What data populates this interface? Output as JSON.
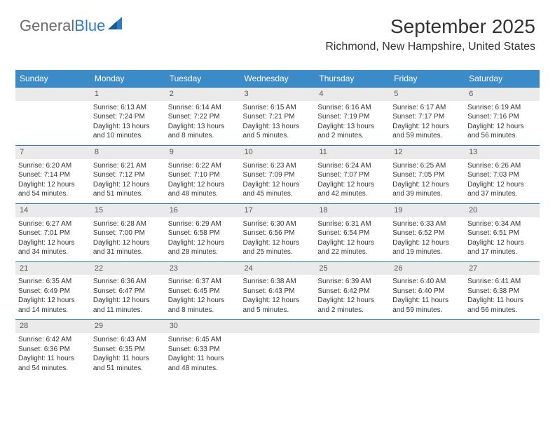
{
  "logo": {
    "part1": "General",
    "part2": "Blue"
  },
  "header": {
    "month": "September 2025",
    "location": "Richmond, New Hampshire, United States"
  },
  "colors": {
    "header_bg": "#3b8bc8",
    "row_divider": "#2d7cc1",
    "daynum_bg": "#eaeaea",
    "text": "#333333"
  },
  "weekdays": [
    "Sunday",
    "Monday",
    "Tuesday",
    "Wednesday",
    "Thursday",
    "Friday",
    "Saturday"
  ],
  "weeks": [
    {
      "nums": [
        "",
        "1",
        "2",
        "3",
        "4",
        "5",
        "6"
      ],
      "cells": [
        {
          "sunrise": "",
          "sunset": "",
          "daylight": ""
        },
        {
          "sunrise": "Sunrise: 6:13 AM",
          "sunset": "Sunset: 7:24 PM",
          "daylight": "Daylight: 13 hours and 10 minutes."
        },
        {
          "sunrise": "Sunrise: 6:14 AM",
          "sunset": "Sunset: 7:22 PM",
          "daylight": "Daylight: 13 hours and 8 minutes."
        },
        {
          "sunrise": "Sunrise: 6:15 AM",
          "sunset": "Sunset: 7:21 PM",
          "daylight": "Daylight: 13 hours and 5 minutes."
        },
        {
          "sunrise": "Sunrise: 6:16 AM",
          "sunset": "Sunset: 7:19 PM",
          "daylight": "Daylight: 13 hours and 2 minutes."
        },
        {
          "sunrise": "Sunrise: 6:17 AM",
          "sunset": "Sunset: 7:17 PM",
          "daylight": "Daylight: 12 hours and 59 minutes."
        },
        {
          "sunrise": "Sunrise: 6:19 AM",
          "sunset": "Sunset: 7:16 PM",
          "daylight": "Daylight: 12 hours and 56 minutes."
        }
      ]
    },
    {
      "nums": [
        "7",
        "8",
        "9",
        "10",
        "11",
        "12",
        "13"
      ],
      "cells": [
        {
          "sunrise": "Sunrise: 6:20 AM",
          "sunset": "Sunset: 7:14 PM",
          "daylight": "Daylight: 12 hours and 54 minutes."
        },
        {
          "sunrise": "Sunrise: 6:21 AM",
          "sunset": "Sunset: 7:12 PM",
          "daylight": "Daylight: 12 hours and 51 minutes."
        },
        {
          "sunrise": "Sunrise: 6:22 AM",
          "sunset": "Sunset: 7:10 PM",
          "daylight": "Daylight: 12 hours and 48 minutes."
        },
        {
          "sunrise": "Sunrise: 6:23 AM",
          "sunset": "Sunset: 7:09 PM",
          "daylight": "Daylight: 12 hours and 45 minutes."
        },
        {
          "sunrise": "Sunrise: 6:24 AM",
          "sunset": "Sunset: 7:07 PM",
          "daylight": "Daylight: 12 hours and 42 minutes."
        },
        {
          "sunrise": "Sunrise: 6:25 AM",
          "sunset": "Sunset: 7:05 PM",
          "daylight": "Daylight: 12 hours and 39 minutes."
        },
        {
          "sunrise": "Sunrise: 6:26 AM",
          "sunset": "Sunset: 7:03 PM",
          "daylight": "Daylight: 12 hours and 37 minutes."
        }
      ]
    },
    {
      "nums": [
        "14",
        "15",
        "16",
        "17",
        "18",
        "19",
        "20"
      ],
      "cells": [
        {
          "sunrise": "Sunrise: 6:27 AM",
          "sunset": "Sunset: 7:01 PM",
          "daylight": "Daylight: 12 hours and 34 minutes."
        },
        {
          "sunrise": "Sunrise: 6:28 AM",
          "sunset": "Sunset: 7:00 PM",
          "daylight": "Daylight: 12 hours and 31 minutes."
        },
        {
          "sunrise": "Sunrise: 6:29 AM",
          "sunset": "Sunset: 6:58 PM",
          "daylight": "Daylight: 12 hours and 28 minutes."
        },
        {
          "sunrise": "Sunrise: 6:30 AM",
          "sunset": "Sunset: 6:56 PM",
          "daylight": "Daylight: 12 hours and 25 minutes."
        },
        {
          "sunrise": "Sunrise: 6:31 AM",
          "sunset": "Sunset: 6:54 PM",
          "daylight": "Daylight: 12 hours and 22 minutes."
        },
        {
          "sunrise": "Sunrise: 6:33 AM",
          "sunset": "Sunset: 6:52 PM",
          "daylight": "Daylight: 12 hours and 19 minutes."
        },
        {
          "sunrise": "Sunrise: 6:34 AM",
          "sunset": "Sunset: 6:51 PM",
          "daylight": "Daylight: 12 hours and 17 minutes."
        }
      ]
    },
    {
      "nums": [
        "21",
        "22",
        "23",
        "24",
        "25",
        "26",
        "27"
      ],
      "cells": [
        {
          "sunrise": "Sunrise: 6:35 AM",
          "sunset": "Sunset: 6:49 PM",
          "daylight": "Daylight: 12 hours and 14 minutes."
        },
        {
          "sunrise": "Sunrise: 6:36 AM",
          "sunset": "Sunset: 6:47 PM",
          "daylight": "Daylight: 12 hours and 11 minutes."
        },
        {
          "sunrise": "Sunrise: 6:37 AM",
          "sunset": "Sunset: 6:45 PM",
          "daylight": "Daylight: 12 hours and 8 minutes."
        },
        {
          "sunrise": "Sunrise: 6:38 AM",
          "sunset": "Sunset: 6:43 PM",
          "daylight": "Daylight: 12 hours and 5 minutes."
        },
        {
          "sunrise": "Sunrise: 6:39 AM",
          "sunset": "Sunset: 6:42 PM",
          "daylight": "Daylight: 12 hours and 2 minutes."
        },
        {
          "sunrise": "Sunrise: 6:40 AM",
          "sunset": "Sunset: 6:40 PM",
          "daylight": "Daylight: 11 hours and 59 minutes."
        },
        {
          "sunrise": "Sunrise: 6:41 AM",
          "sunset": "Sunset: 6:38 PM",
          "daylight": "Daylight: 11 hours and 56 minutes."
        }
      ]
    },
    {
      "nums": [
        "28",
        "29",
        "30",
        "",
        "",
        "",
        ""
      ],
      "cells": [
        {
          "sunrise": "Sunrise: 6:42 AM",
          "sunset": "Sunset: 6:36 PM",
          "daylight": "Daylight: 11 hours and 54 minutes."
        },
        {
          "sunrise": "Sunrise: 6:43 AM",
          "sunset": "Sunset: 6:35 PM",
          "daylight": "Daylight: 11 hours and 51 minutes."
        },
        {
          "sunrise": "Sunrise: 6:45 AM",
          "sunset": "Sunset: 6:33 PM",
          "daylight": "Daylight: 11 hours and 48 minutes."
        },
        {
          "sunrise": "",
          "sunset": "",
          "daylight": ""
        },
        {
          "sunrise": "",
          "sunset": "",
          "daylight": ""
        },
        {
          "sunrise": "",
          "sunset": "",
          "daylight": ""
        },
        {
          "sunrise": "",
          "sunset": "",
          "daylight": ""
        }
      ]
    }
  ]
}
